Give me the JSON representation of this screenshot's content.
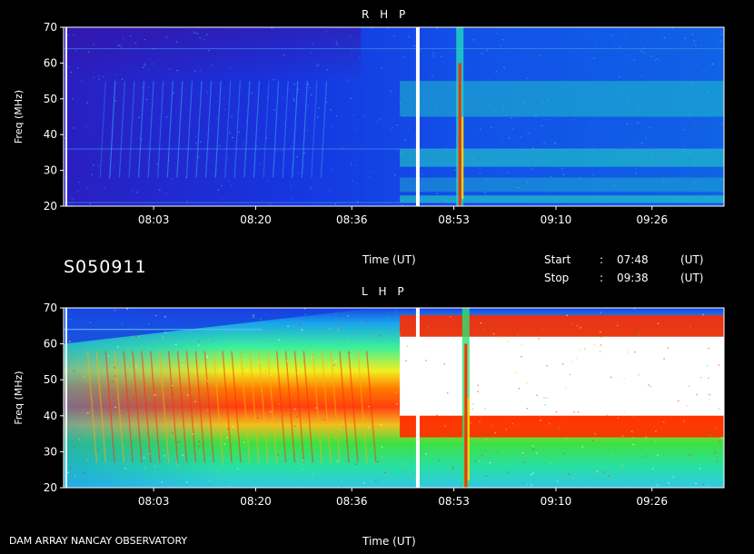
{
  "observation_id": "S050911",
  "observatory": "DAM ARRAY   NANCAY OBSERVATORY",
  "info": {
    "start_label": "Start",
    "start_sep": ":",
    "start_time": "07:48",
    "start_unit": "(UT)",
    "stop_label": "Stop",
    "stop_sep": ":",
    "stop_time": "09:38",
    "stop_unit": "(UT)"
  },
  "colors": {
    "background": "#000000",
    "low": "#1a2ad8",
    "mid": "#21e870",
    "high": "#ff2200",
    "saturated": "#ffffff"
  },
  "chart_data": [
    {
      "type": "heatmap",
      "title": "R H P",
      "xlabel": "Time (UT)",
      "ylabel": "Freq (MHz)",
      "xticks": [
        "08:03",
        "08:20",
        "08:36",
        "08:53",
        "09:10",
        "09:26"
      ],
      "yticks": [
        20,
        30,
        40,
        50,
        60,
        70
      ],
      "ylim": [
        20,
        70
      ],
      "xlim": [
        "07:48",
        "09:38"
      ],
      "intensity": "low-moderate; blue background with cyan/green emission bands near 30-35 MHz and 45-55 MHz after 08:53, faint drifting striations 07:55-08:30",
      "features": [
        {
          "time": "08:47",
          "description": "vertical white line (broadband spike)"
        },
        {
          "time": "08:54",
          "description": "narrow broadband burst with red/yellow core"
        }
      ]
    },
    {
      "type": "heatmap",
      "title": "L H P",
      "xlabel": "Time (UT)",
      "ylabel": "Freq (MHz)",
      "xticks": [
        "08:03",
        "08:20",
        "08:36",
        "08:53",
        "09:10",
        "09:26"
      ],
      "yticks": [
        20,
        30,
        40,
        50,
        60,
        70
      ],
      "ylim": [
        20,
        70
      ],
      "xlim": [
        "07:48",
        "09:38"
      ],
      "intensity": "strong emission; green/yellow/red arcs 07:50-08:40, saturated (white) emission 40-62 MHz from about 08:44 to end",
      "features": [
        {
          "time": "08:47",
          "description": "vertical white line (broadband spike)"
        },
        {
          "time": "08:55",
          "description": "broadband burst down to 20 MHz"
        }
      ]
    }
  ]
}
